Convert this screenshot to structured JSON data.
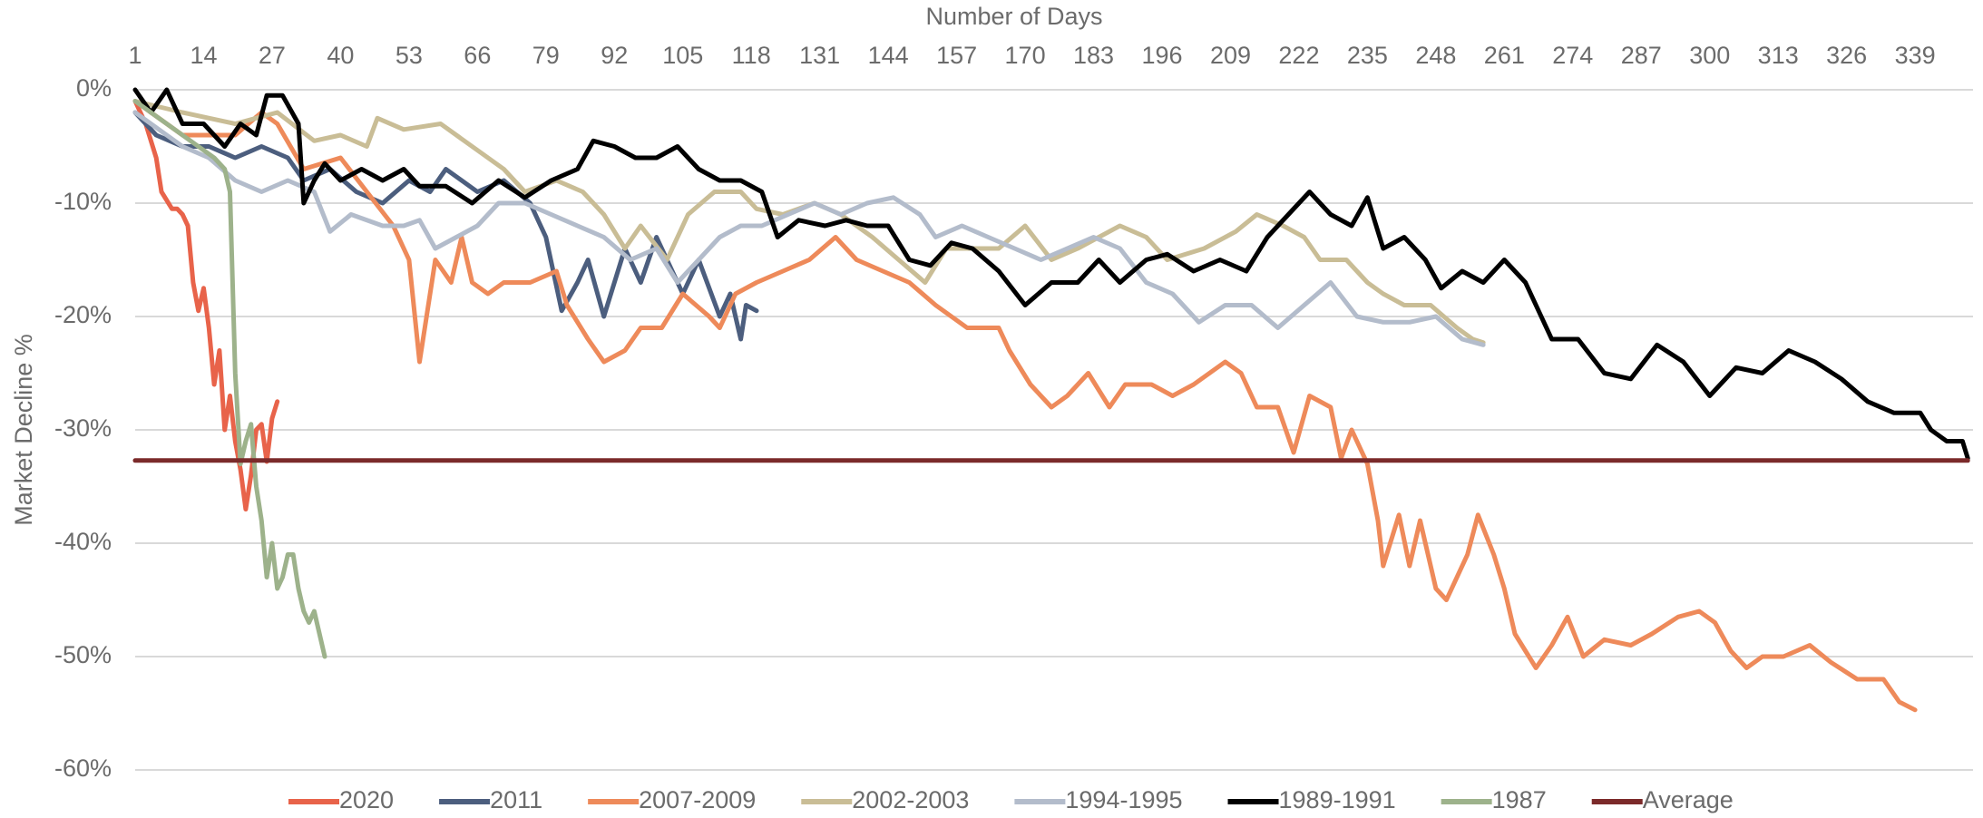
{
  "chart_data": {
    "type": "line",
    "x_label": "Number of Days",
    "y_label": "Market Decline %",
    "xlim": [
      1,
      350
    ],
    "xticks": [
      1,
      14,
      27,
      40,
      53,
      66,
      79,
      92,
      105,
      118,
      131,
      144,
      157,
      170,
      183,
      196,
      209,
      222,
      235,
      248,
      261,
      274,
      287,
      300,
      313,
      326,
      339
    ],
    "ylim": [
      -60,
      0
    ],
    "yticks": [
      {
        "value": -60,
        "label": "-60%"
      },
      {
        "value": -50,
        "label": "-50%"
      },
      {
        "value": -40,
        "label": "-40%"
      },
      {
        "value": -30,
        "label": "-30%"
      },
      {
        "value": -20,
        "label": "-20%"
      },
      {
        "value": -10,
        "label": "-10%"
      },
      {
        "value": 0,
        "label": "0%"
      }
    ],
    "grid": true,
    "legend": "bottom",
    "series": [
      {
        "name": "2020",
        "color": "#e8634a",
        "x": [
          1,
          3,
          5,
          6,
          8,
          9,
          10,
          11,
          12,
          13,
          14,
          15,
          16,
          17,
          18,
          19,
          20,
          21,
          22,
          23,
          24,
          25,
          26,
          27,
          28
        ],
        "values": [
          -1,
          -3,
          -6,
          -9,
          -10.5,
          -10.5,
          -11,
          -12,
          -17,
          -19.5,
          -17.5,
          -21,
          -26,
          -23,
          -30,
          -27,
          -31,
          -33.5,
          -37,
          -34,
          -30,
          -29.5,
          -32.8,
          -29,
          -27.5
        ]
      },
      {
        "name": "2011",
        "color": "#4c5e7e",
        "x": [
          1,
          5,
          10,
          15,
          20,
          25,
          30,
          33,
          38,
          43,
          48,
          53,
          57,
          60,
          66,
          71,
          76,
          79,
          82,
          85,
          87,
          90,
          94,
          97,
          100,
          105,
          108,
          112,
          114,
          116,
          117,
          119
        ],
        "values": [
          -2,
          -4,
          -5,
          -5,
          -6,
          -5,
          -6,
          -8,
          -7,
          -9,
          -10,
          -8,
          -9,
          -7,
          -9,
          -8,
          -10,
          -13,
          -19.5,
          -17,
          -15,
          -20,
          -14,
          -17,
          -13,
          -18,
          -15,
          -20,
          -18,
          -22,
          -19,
          -19.5
        ]
      },
      {
        "name": "2007-2009",
        "color": "#ee8a5a",
        "x": [
          1,
          10,
          20,
          25,
          28,
          33,
          40,
          45,
          50,
          53,
          55,
          58,
          61,
          63,
          65,
          68,
          71,
          76,
          81,
          83,
          87,
          90,
          94,
          97,
          101,
          105,
          110,
          112,
          115,
          119,
          124,
          129,
          134,
          138,
          143,
          148,
          153,
          159,
          165,
          167,
          171,
          175,
          178,
          182,
          186,
          189,
          194,
          198,
          202,
          208,
          211,
          214,
          218,
          221,
          224,
          228,
          230,
          232,
          235,
          237,
          238,
          241,
          243,
          245,
          248,
          250,
          254,
          256,
          259,
          261,
          263,
          267,
          270,
          273,
          276,
          280,
          285,
          289,
          294,
          298,
          301,
          304,
          307,
          310,
          314,
          319,
          323,
          328,
          333,
          336,
          339
        ],
        "values": [
          -1,
          -4,
          -4,
          -2,
          -3,
          -7,
          -6,
          -9,
          -12,
          -15,
          -24,
          -15,
          -17,
          -13,
          -17,
          -18,
          -17,
          -17,
          -16,
          -19,
          -22,
          -24,
          -23,
          -21,
          -21,
          -18,
          -20,
          -21,
          -18,
          -17,
          -16,
          -15,
          -13,
          -15,
          -16,
          -17,
          -19,
          -21,
          -21,
          -23,
          -26,
          -28,
          -27,
          -25,
          -28,
          -26,
          -26,
          -27,
          -26,
          -24,
          -25,
          -28,
          -28,
          -32,
          -27,
          -28,
          -32.5,
          -30,
          -33,
          -38,
          -42,
          -37.5,
          -42,
          -38,
          -44,
          -45,
          -41,
          -37.5,
          -41,
          -44,
          -48,
          -51,
          -49,
          -46.5,
          -50,
          -48.5,
          -49,
          -48,
          -46.5,
          -46,
          -47,
          -49.5,
          -51,
          -50,
          -50,
          -49,
          -50.5,
          -52,
          -52,
          -54,
          -54.7
        ]
      },
      {
        "name": "2002-2003",
        "color": "#c9bd96",
        "x": [
          1,
          10,
          20,
          28,
          35,
          40,
          45,
          47,
          52,
          59,
          65,
          71,
          75,
          81,
          86,
          90,
          94,
          97,
          102,
          106,
          111,
          116,
          119,
          124,
          130,
          135,
          141,
          146,
          151,
          155,
          160,
          165,
          170,
          175,
          180,
          184,
          188,
          193,
          197,
          204,
          210,
          214,
          219,
          223,
          226,
          231,
          235,
          238,
          242,
          247,
          252,
          255,
          257
        ],
        "values": [
          -1,
          -2,
          -3,
          -2,
          -4.5,
          -4,
          -5,
          -2.5,
          -3.5,
          -3,
          -5,
          -7,
          -9,
          -8,
          -9,
          -11,
          -14,
          -12,
          -15,
          -11,
          -9,
          -9,
          -10.5,
          -11,
          -10,
          -11,
          -13,
          -15,
          -17,
          -14,
          -14,
          -14,
          -12,
          -15,
          -14,
          -13,
          -12,
          -13,
          -15,
          -14,
          -12.5,
          -11,
          -12,
          -13,
          -15,
          -15,
          -17,
          -18,
          -19,
          -19,
          -21,
          -22,
          -22.3
        ]
      },
      {
        "name": "1994-1995",
        "color": "#b3bccb",
        "x": [
          1,
          10,
          15,
          20,
          25,
          30,
          35,
          38,
          42,
          48,
          52,
          55,
          58,
          62,
          66,
          70,
          75,
          80,
          85,
          90,
          95,
          100,
          104,
          108,
          112,
          116,
          120,
          125,
          130,
          135,
          140,
          145,
          150,
          153,
          158,
          163,
          168,
          173,
          178,
          183,
          188,
          193,
          198,
          203,
          208,
          213,
          218,
          223,
          228,
          233,
          238,
          243,
          248,
          253,
          257
        ],
        "values": [
          -2,
          -5,
          -6,
          -8,
          -9,
          -8,
          -9,
          -12.5,
          -11,
          -12,
          -12,
          -11.5,
          -14,
          -13,
          -12,
          -10,
          -10,
          -11,
          -12,
          -13,
          -15,
          -14,
          -17,
          -15,
          -13,
          -12,
          -12,
          -11,
          -10,
          -11,
          -10,
          -9.5,
          -11,
          -13,
          -12,
          -13,
          -14,
          -15,
          -14,
          -13,
          -14,
          -17,
          -18,
          -20.5,
          -19,
          -19,
          -21,
          -19,
          -17,
          -20,
          -20.5,
          -20.5,
          -20,
          -22,
          -22.5
        ]
      },
      {
        "name": "1989-1991",
        "color": "#000000",
        "x": [
          1,
          4,
          7,
          10,
          14,
          18,
          21,
          24,
          26,
          29,
          32,
          33,
          35,
          37,
          40,
          44,
          48,
          52,
          55,
          60,
          65,
          70,
          75,
          80,
          85,
          88,
          92,
          96,
          100,
          104,
          108,
          112,
          116,
          120,
          123,
          127,
          132,
          136,
          140,
          144,
          148,
          152,
          156,
          160,
          165,
          170,
          175,
          180,
          184,
          188,
          193,
          197,
          202,
          207,
          212,
          216,
          220,
          224,
          228,
          232,
          235,
          238,
          242,
          246,
          249,
          253,
          257,
          261,
          265,
          270,
          275,
          280,
          285,
          290,
          295,
          300,
          305,
          310,
          315,
          320,
          325,
          330,
          335,
          340,
          342,
          345,
          348,
          349
        ],
        "values": [
          0,
          -2,
          0,
          -3,
          -3,
          -5,
          -3,
          -4,
          -0.5,
          -0.5,
          -3,
          -10,
          -8,
          -6.5,
          -8,
          -7,
          -8,
          -7,
          -8.5,
          -8.5,
          -10,
          -8,
          -9.5,
          -8,
          -7,
          -4.5,
          -5,
          -6,
          -6,
          -5,
          -7,
          -8,
          -8,
          -9,
          -13,
          -11.5,
          -12,
          -11.5,
          -12,
          -12,
          -15,
          -15.5,
          -13.5,
          -14,
          -16,
          -19,
          -17,
          -17,
          -15,
          -17,
          -15,
          -14.5,
          -16,
          -15,
          -16,
          -13,
          -11,
          -9,
          -11,
          -12,
          -9.5,
          -14,
          -13,
          -15,
          -17.5,
          -16,
          -17,
          -15,
          -17,
          -22,
          -22,
          -25,
          -25.5,
          -22.5,
          -24,
          -27,
          -24.5,
          -25,
          -23,
          -24,
          -25.5,
          -27.5,
          -28.5,
          -28.5,
          -30,
          -31,
          -31,
          -32.5
        ]
      },
      {
        "name": "1987",
        "color": "#9db28b",
        "x": [
          1,
          4,
          7,
          10,
          13,
          16,
          18,
          19,
          20,
          21,
          22,
          23,
          24,
          25,
          26,
          27,
          28,
          29,
          30,
          31,
          32,
          33,
          34,
          35,
          36,
          37
        ],
        "values": [
          -1,
          -2,
          -3,
          -4,
          -5,
          -6,
          -7,
          -9,
          -25,
          -33,
          -31,
          -29.5,
          -35,
          -38,
          -43,
          -40,
          -44,
          -43,
          -41,
          -41,
          -44,
          -46,
          -47,
          -46,
          -48,
          -50
        ]
      },
      {
        "name": "Average",
        "color": "#7b2a2a",
        "x": [
          1,
          349
        ],
        "values": [
          -32.7,
          -32.7
        ]
      }
    ]
  }
}
